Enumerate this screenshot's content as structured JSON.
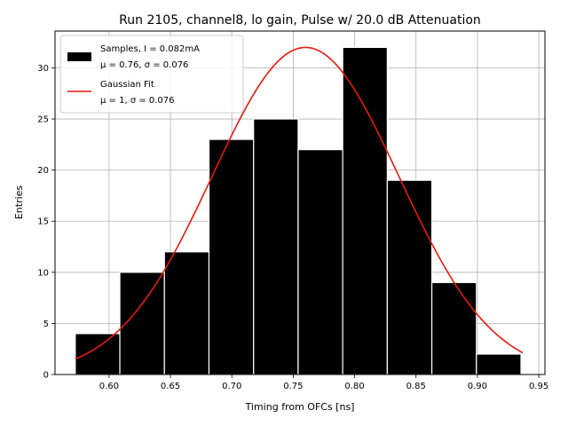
{
  "chart_data": {
    "type": "bar",
    "title": "Run 2105, channel8, lo gain, Pulse w/ 20.0 dB Attenuation",
    "xlabel": "Timing from OFCs [ns]",
    "ylabel": "Entries",
    "xlim": [
      0.556,
      0.955
    ],
    "ylim": [
      0,
      33.6
    ],
    "grid": true,
    "legend_placement": "upper-left",
    "xticks": [
      0.6,
      0.65,
      0.7,
      0.75,
      0.8,
      0.85,
      0.9,
      0.95
    ],
    "xtick_labels": [
      "0.60",
      "0.65",
      "0.70",
      "0.75",
      "0.80",
      "0.85",
      "0.90",
      "0.95"
    ],
    "yticks": [
      0,
      5,
      10,
      15,
      20,
      25,
      30
    ],
    "ytick_labels": [
      "0",
      "5",
      "10",
      "15",
      "20",
      "25",
      "30"
    ],
    "histogram": {
      "name": "Samples, I = 0.082mA",
      "stats_label": "μ = 0.76, σ = 0.076",
      "color": "#000000",
      "edgecolor": "#ffffff",
      "bin_edges": [
        0.5725,
        0.6088,
        0.6451,
        0.6814,
        0.7177,
        0.754,
        0.7903,
        0.8266,
        0.8629,
        0.8992,
        0.9355
      ],
      "counts": [
        4,
        10,
        12,
        23,
        25,
        22,
        32,
        19,
        9,
        2
      ]
    },
    "fit": {
      "name": "Gaussian Fit",
      "stats_label": "μ = 1, σ = 0.076",
      "color": "#e8190e",
      "mu": 0.76,
      "sigma": 0.076,
      "amplitude": 32.0,
      "x_range": [
        0.5725,
        0.937
      ]
    }
  }
}
